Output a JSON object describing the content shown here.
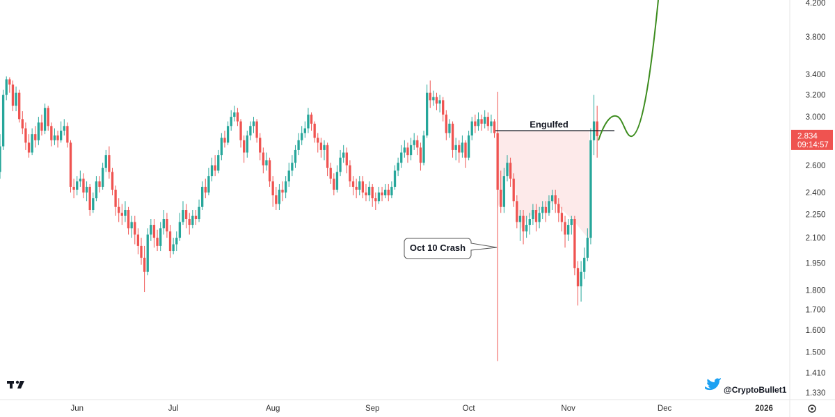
{
  "chart_data": {
    "type": "candlestick",
    "log_scale": true,
    "grid": false,
    "up_color": "#26a69a",
    "down_color": "#ef5350",
    "ylim": [
      1.303,
      4.234
    ],
    "yticks": [
      {
        "value": 4.2,
        "label": "4.200"
      },
      {
        "value": 3.8,
        "label": "3.800"
      },
      {
        "value": 3.4,
        "label": "3.400"
      },
      {
        "value": 3.2,
        "label": "3.200"
      },
      {
        "value": 3.0,
        "label": "3.000"
      },
      {
        "value": 2.6,
        "label": "2.600"
      },
      {
        "value": 2.4,
        "label": "2.400"
      },
      {
        "value": 2.25,
        "label": "2.250"
      },
      {
        "value": 2.1,
        "label": "2.100"
      },
      {
        "value": 1.95,
        "label": "1.950"
      },
      {
        "value": 1.8,
        "label": "1.800"
      },
      {
        "value": 1.7,
        "label": "1.700"
      },
      {
        "value": 1.6,
        "label": "1.600"
      },
      {
        "value": 1.5,
        "label": "1.500"
      },
      {
        "value": 1.41,
        "label": "1.410"
      },
      {
        "value": 1.33,
        "label": "1.330"
      }
    ],
    "xlim": [
      0,
      246
    ],
    "xticks": [
      {
        "value": 24,
        "label": "Jun"
      },
      {
        "value": 54,
        "label": "Jul"
      },
      {
        "value": 85,
        "label": "Aug"
      },
      {
        "value": 116,
        "label": "Sep"
      },
      {
        "value": 146,
        "label": "Oct"
      },
      {
        "value": 177,
        "label": "Nov"
      },
      {
        "value": 207,
        "label": "Dec"
      },
      {
        "value": 238,
        "label": "2026"
      }
    ],
    "last_price": {
      "value": 2.834,
      "label": "2.834"
    },
    "countdown": "09:14:57",
    "annotations": [
      {
        "text": "Engulfed",
        "value": 2.88
      },
      {
        "text": "Oct 10 Crash"
      }
    ],
    "watermark": "@CryptoBullet1",
    "ohlc": [
      [
        2.55,
        2.85,
        2.5,
        2.75
      ],
      [
        2.75,
        3.25,
        2.72,
        3.2
      ],
      [
        3.2,
        3.38,
        3.15,
        3.35
      ],
      [
        3.35,
        3.37,
        3.22,
        3.3
      ],
      [
        3.3,
        3.34,
        3.05,
        3.1
      ],
      [
        3.1,
        3.28,
        3.05,
        3.22
      ],
      [
        3.22,
        3.25,
        2.95,
        2.98
      ],
      [
        2.98,
        3.05,
        2.85,
        2.9
      ],
      [
        2.9,
        2.95,
        2.72,
        2.78
      ],
      [
        2.78,
        2.85,
        2.66,
        2.7
      ],
      [
        2.7,
        2.9,
        2.68,
        2.85
      ],
      [
        2.85,
        2.92,
        2.74,
        2.8
      ],
      [
        2.8,
        3.0,
        2.76,
        2.95
      ],
      [
        2.95,
        3.02,
        2.84,
        2.88
      ],
      [
        2.88,
        3.12,
        2.85,
        3.08
      ],
      [
        3.08,
        3.1,
        2.88,
        2.92
      ],
      [
        2.92,
        2.95,
        2.75,
        2.8
      ],
      [
        2.8,
        2.9,
        2.76,
        2.84
      ],
      [
        2.84,
        2.88,
        2.74,
        2.8
      ],
      [
        2.8,
        2.96,
        2.78,
        2.88
      ],
      [
        2.88,
        2.98,
        2.84,
        2.92
      ],
      [
        2.92,
        2.95,
        2.74,
        2.78
      ],
      [
        2.78,
        2.8,
        2.4,
        2.44
      ],
      [
        2.44,
        2.5,
        2.36,
        2.42
      ],
      [
        2.42,
        2.52,
        2.38,
        2.48
      ],
      [
        2.48,
        2.56,
        2.44,
        2.5
      ],
      [
        2.5,
        2.54,
        2.36,
        2.4
      ],
      [
        2.4,
        2.48,
        2.34,
        2.44
      ],
      [
        2.44,
        2.46,
        2.24,
        2.28
      ],
      [
        2.28,
        2.4,
        2.26,
        2.36
      ],
      [
        2.36,
        2.52,
        2.34,
        2.48
      ],
      [
        2.48,
        2.52,
        2.4,
        2.44
      ],
      [
        2.44,
        2.62,
        2.42,
        2.58
      ],
      [
        2.58,
        2.72,
        2.55,
        2.68
      ],
      [
        2.68,
        2.75,
        2.5,
        2.55
      ],
      [
        2.55,
        2.58,
        2.38,
        2.42
      ],
      [
        2.42,
        2.45,
        2.24,
        2.3
      ],
      [
        2.3,
        2.36,
        2.2,
        2.26
      ],
      [
        2.26,
        2.32,
        2.18,
        2.24
      ],
      [
        2.24,
        2.34,
        2.2,
        2.28
      ],
      [
        2.28,
        2.3,
        2.12,
        2.16
      ],
      [
        2.16,
        2.24,
        2.1,
        2.2
      ],
      [
        2.2,
        2.24,
        2.06,
        2.12
      ],
      [
        2.12,
        2.16,
        2.0,
        2.05
      ],
      [
        2.05,
        2.1,
        1.94,
        1.98
      ],
      [
        1.98,
        2.05,
        1.79,
        1.9
      ],
      [
        1.9,
        2.16,
        1.88,
        2.12
      ],
      [
        2.12,
        2.22,
        2.08,
        2.18
      ],
      [
        2.18,
        2.22,
        2.04,
        2.1
      ],
      [
        2.1,
        2.15,
        2.02,
        2.05
      ],
      [
        2.05,
        2.2,
        2.02,
        2.16
      ],
      [
        2.16,
        2.28,
        2.12,
        2.22
      ],
      [
        2.22,
        2.26,
        2.1,
        2.14
      ],
      [
        2.14,
        2.18,
        1.98,
        2.02
      ],
      [
        2.02,
        2.1,
        2.0,
        2.06
      ],
      [
        2.06,
        2.14,
        2.02,
        2.1
      ],
      [
        2.1,
        2.26,
        2.08,
        2.2
      ],
      [
        2.2,
        2.34,
        2.18,
        2.28
      ],
      [
        2.28,
        2.32,
        2.16,
        2.22
      ],
      [
        2.22,
        2.26,
        2.12,
        2.18
      ],
      [
        2.18,
        2.28,
        2.16,
        2.24
      ],
      [
        2.24,
        2.28,
        2.18,
        2.22
      ],
      [
        2.22,
        2.35,
        2.2,
        2.3
      ],
      [
        2.3,
        2.48,
        2.28,
        2.44
      ],
      [
        2.44,
        2.5,
        2.36,
        2.4
      ],
      [
        2.4,
        2.58,
        2.38,
        2.52
      ],
      [
        2.52,
        2.66,
        2.48,
        2.6
      ],
      [
        2.6,
        2.68,
        2.52,
        2.56
      ],
      [
        2.56,
        2.72,
        2.54,
        2.68
      ],
      [
        2.68,
        2.86,
        2.64,
        2.82
      ],
      [
        2.82,
        2.88,
        2.74,
        2.78
      ],
      [
        2.78,
        2.96,
        2.76,
        2.92
      ],
      [
        2.92,
        3.06,
        2.88,
        3.0
      ],
      [
        3.0,
        3.1,
        2.96,
        3.04
      ],
      [
        3.04,
        3.08,
        2.92,
        2.96
      ],
      [
        2.96,
        2.98,
        2.74,
        2.8
      ],
      [
        2.8,
        2.84,
        2.62,
        2.7
      ],
      [
        2.7,
        2.88,
        2.66,
        2.84
      ],
      [
        2.84,
        2.96,
        2.8,
        2.92
      ],
      [
        2.92,
        3.0,
        2.86,
        2.96
      ],
      [
        2.96,
        2.98,
        2.78,
        2.82
      ],
      [
        2.82,
        2.86,
        2.64,
        2.7
      ],
      [
        2.7,
        2.74,
        2.54,
        2.6
      ],
      [
        2.6,
        2.7,
        2.56,
        2.64
      ],
      [
        2.64,
        2.66,
        2.44,
        2.48
      ],
      [
        2.48,
        2.52,
        2.3,
        2.38
      ],
      [
        2.38,
        2.44,
        2.28,
        2.32
      ],
      [
        2.32,
        2.46,
        2.28,
        2.42
      ],
      [
        2.42,
        2.48,
        2.34,
        2.4
      ],
      [
        2.4,
        2.52,
        2.36,
        2.48
      ],
      [
        2.48,
        2.62,
        2.44,
        2.56
      ],
      [
        2.56,
        2.68,
        2.52,
        2.62
      ],
      [
        2.62,
        2.76,
        2.58,
        2.72
      ],
      [
        2.72,
        2.86,
        2.68,
        2.8
      ],
      [
        2.8,
        2.92,
        2.76,
        2.86
      ],
      [
        2.86,
        2.96,
        2.82,
        2.9
      ],
      [
        2.9,
        3.08,
        2.86,
        3.02
      ],
      [
        3.02,
        3.04,
        2.88,
        2.94
      ],
      [
        2.94,
        2.96,
        2.78,
        2.82
      ],
      [
        2.82,
        2.86,
        2.7,
        2.78
      ],
      [
        2.78,
        2.82,
        2.66,
        2.72
      ],
      [
        2.72,
        2.8,
        2.64,
        2.76
      ],
      [
        2.76,
        2.78,
        2.52,
        2.58
      ],
      [
        2.58,
        2.62,
        2.46,
        2.5
      ],
      [
        2.5,
        2.54,
        2.38,
        2.42
      ],
      [
        2.42,
        2.6,
        2.4,
        2.55
      ],
      [
        2.55,
        2.72,
        2.52,
        2.66
      ],
      [
        2.66,
        2.76,
        2.62,
        2.7
      ],
      [
        2.7,
        2.74,
        2.54,
        2.6
      ],
      [
        2.6,
        2.64,
        2.44,
        2.48
      ],
      [
        2.48,
        2.52,
        2.38,
        2.44
      ],
      [
        2.44,
        2.5,
        2.36,
        2.42
      ],
      [
        2.42,
        2.52,
        2.38,
        2.48
      ],
      [
        2.48,
        2.52,
        2.36,
        2.4
      ],
      [
        2.4,
        2.46,
        2.34,
        2.38
      ],
      [
        2.38,
        2.48,
        2.34,
        2.44
      ],
      [
        2.44,
        2.46,
        2.3,
        2.36
      ],
      [
        2.36,
        2.4,
        2.28,
        2.34
      ],
      [
        2.34,
        2.44,
        2.32,
        2.4
      ],
      [
        2.4,
        2.44,
        2.34,
        2.38
      ],
      [
        2.38,
        2.46,
        2.36,
        2.42
      ],
      [
        2.42,
        2.46,
        2.34,
        2.38
      ],
      [
        2.38,
        2.48,
        2.36,
        2.44
      ],
      [
        2.44,
        2.6,
        2.42,
        2.56
      ],
      [
        2.56,
        2.66,
        2.52,
        2.62
      ],
      [
        2.62,
        2.76,
        2.58,
        2.7
      ],
      [
        2.7,
        2.8,
        2.66,
        2.74
      ],
      [
        2.74,
        2.78,
        2.62,
        2.68
      ],
      [
        2.68,
        2.82,
        2.64,
        2.76
      ],
      [
        2.76,
        2.86,
        2.72,
        2.8
      ],
      [
        2.8,
        2.84,
        2.68,
        2.74
      ],
      [
        2.74,
        2.78,
        2.56,
        2.62
      ],
      [
        2.62,
        2.88,
        2.6,
        2.84
      ],
      [
        2.84,
        3.3,
        2.82,
        3.22
      ],
      [
        3.22,
        3.34,
        3.08,
        3.15
      ],
      [
        3.15,
        3.24,
        3.1,
        3.18
      ],
      [
        3.18,
        3.22,
        3.06,
        3.12
      ],
      [
        3.12,
        3.2,
        3.04,
        3.15
      ],
      [
        3.15,
        3.18,
        2.96,
        3.02
      ],
      [
        3.02,
        3.06,
        2.8,
        2.86
      ],
      [
        2.86,
        2.98,
        2.82,
        2.94
      ],
      [
        2.94,
        2.96,
        2.66,
        2.72
      ],
      [
        2.72,
        2.82,
        2.64,
        2.76
      ],
      [
        2.76,
        2.8,
        2.62,
        2.7
      ],
      [
        2.7,
        2.84,
        2.66,
        2.78
      ],
      [
        2.78,
        2.8,
        2.58,
        2.66
      ],
      [
        2.66,
        2.88,
        2.64,
        2.84
      ],
      [
        2.84,
        3.0,
        2.8,
        2.96
      ],
      [
        2.96,
        3.02,
        2.86,
        2.92
      ],
      [
        2.92,
        3.04,
        2.88,
        2.98
      ],
      [
        2.98,
        3.02,
        2.88,
        2.94
      ],
      [
        2.94,
        3.06,
        2.9,
        3.0
      ],
      [
        3.0,
        3.04,
        2.88,
        2.92
      ],
      [
        2.92,
        3.02,
        2.86,
        2.96
      ],
      [
        2.96,
        2.98,
        2.82,
        2.86
      ],
      [
        2.86,
        3.23,
        1.46,
        2.42
      ],
      [
        2.42,
        2.56,
        2.26,
        2.3
      ],
      [
        2.3,
        2.58,
        2.26,
        2.52
      ],
      [
        2.52,
        2.68,
        2.48,
        2.62
      ],
      [
        2.62,
        2.66,
        2.44,
        2.5
      ],
      [
        2.5,
        2.54,
        2.3,
        2.34
      ],
      [
        2.34,
        2.38,
        2.16,
        2.2
      ],
      [
        2.2,
        2.28,
        2.08,
        2.24
      ],
      [
        2.24,
        2.28,
        2.06,
        2.14
      ],
      [
        2.14,
        2.24,
        2.1,
        2.18
      ],
      [
        2.18,
        2.26,
        2.12,
        2.22
      ],
      [
        2.22,
        2.32,
        2.18,
        2.28
      ],
      [
        2.28,
        2.32,
        2.14,
        2.2
      ],
      [
        2.2,
        2.3,
        2.16,
        2.26
      ],
      [
        2.26,
        2.34,
        2.22,
        2.3
      ],
      [
        2.3,
        2.34,
        2.2,
        2.26
      ],
      [
        2.26,
        2.38,
        2.24,
        2.34
      ],
      [
        2.34,
        2.42,
        2.28,
        2.38
      ],
      [
        2.38,
        2.42,
        2.26,
        2.32
      ],
      [
        2.32,
        2.36,
        2.2,
        2.26
      ],
      [
        2.26,
        2.3,
        2.14,
        2.2
      ],
      [
        2.2,
        2.24,
        2.04,
        2.12
      ],
      [
        2.12,
        2.22,
        2.08,
        2.18
      ],
      [
        2.18,
        2.24,
        2.12,
        2.22
      ],
      [
        2.22,
        2.24,
        1.88,
        1.92
      ],
      [
        1.92,
        1.96,
        1.72,
        1.82
      ],
      [
        1.82,
        1.96,
        1.74,
        1.9
      ],
      [
        1.9,
        2.04,
        1.86,
        1.98
      ],
      [
        1.98,
        2.16,
        1.96,
        2.1
      ],
      [
        2.1,
        2.9,
        2.06,
        2.8
      ],
      [
        2.8,
        3.2,
        2.68,
        2.96
      ],
      [
        2.96,
        3.1,
        2.66,
        2.834
      ]
    ]
  }
}
